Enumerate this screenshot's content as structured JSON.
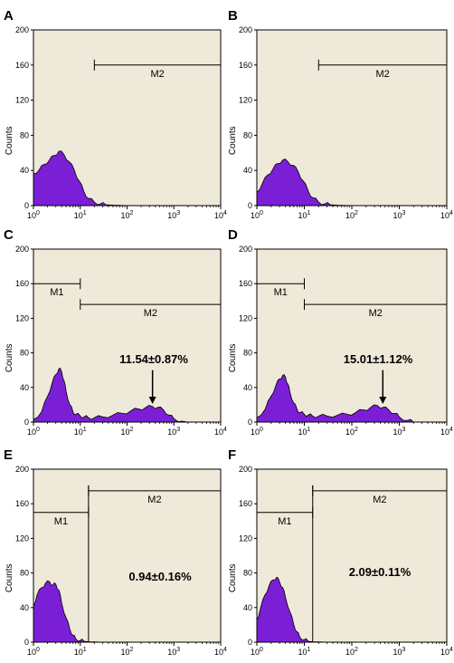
{
  "chart_data": [
    {
      "panel": "A",
      "type": "area",
      "ylabel": "Counts",
      "ylim": [
        0,
        200
      ],
      "xscale": "log",
      "xlim": [
        1,
        10000
      ],
      "yticks": [
        "0",
        "40",
        "80",
        "120",
        "160",
        "200"
      ],
      "xticks": [
        {
          "base": "10",
          "exp": "0"
        },
        {
          "base": "10",
          "exp": "1"
        },
        {
          "base": "10",
          "exp": "2"
        },
        {
          "base": "10",
          "exp": "3"
        },
        {
          "base": "10",
          "exp": "4"
        }
      ],
      "gates": [
        {
          "label": "M2",
          "start": 20,
          "end": 10000,
          "y": 160
        }
      ],
      "annotation": null,
      "histogram": {
        "x": [
          1,
          1.3,
          1.7,
          2.2,
          2.8,
          3.5,
          4.5,
          5.8,
          7.5,
          9.5,
          12,
          15,
          20,
          27,
          35,
          50,
          70,
          100,
          10000
        ],
        "y": [
          37,
          40,
          47,
          52,
          57,
          62,
          58,
          50,
          40,
          28,
          16,
          8,
          4,
          2,
          1,
          0.5,
          0.3,
          0,
          0
        ]
      }
    },
    {
      "panel": "B",
      "type": "area",
      "ylabel": "Counts",
      "ylim": [
        0,
        200
      ],
      "xscale": "log",
      "xlim": [
        1,
        10000
      ],
      "yticks": [
        "0",
        "40",
        "80",
        "120",
        "160",
        "200"
      ],
      "xticks": [
        {
          "base": "10",
          "exp": "0"
        },
        {
          "base": "10",
          "exp": "1"
        },
        {
          "base": "10",
          "exp": "2"
        },
        {
          "base": "10",
          "exp": "3"
        },
        {
          "base": "10",
          "exp": "4"
        }
      ],
      "gates": [
        {
          "label": "M2",
          "start": 20,
          "end": 10000,
          "y": 160
        }
      ],
      "annotation": null,
      "histogram": {
        "x": [
          1,
          1.3,
          1.7,
          2.2,
          2.8,
          3.5,
          4.5,
          5.8,
          7.5,
          9.5,
          12,
          15,
          20,
          27,
          35,
          50,
          70,
          100,
          10000
        ],
        "y": [
          15,
          25,
          35,
          42,
          48,
          52,
          50,
          46,
          38,
          28,
          17,
          9,
          4,
          2,
          1,
          0.5,
          0.2,
          0,
          0
        ]
      }
    },
    {
      "panel": "C",
      "type": "area",
      "ylabel": "Counts",
      "ylim": [
        0,
        200
      ],
      "xscale": "log",
      "xlim": [
        1,
        10000
      ],
      "yticks": [
        "0",
        "40",
        "80",
        "120",
        "160",
        "200"
      ],
      "xticks": [
        {
          "base": "10",
          "exp": "0"
        },
        {
          "base": "10",
          "exp": "1"
        },
        {
          "base": "10",
          "exp": "2"
        },
        {
          "base": "10",
          "exp": "3"
        },
        {
          "base": "10",
          "exp": "4"
        }
      ],
      "gates": [
        {
          "label": "M1",
          "start": 1,
          "end": 10,
          "y": 160
        },
        {
          "label": "M2",
          "start": 10,
          "end": 10000,
          "y": 136
        }
      ],
      "annotation": {
        "text": "11.54±0.87%",
        "x": 350,
        "y": 60,
        "arrow_to_y": 22
      },
      "histogram": {
        "x": [
          1,
          1.5,
          2,
          2.5,
          3,
          3.5,
          4,
          4.5,
          5,
          6,
          7,
          8,
          10,
          12,
          15,
          20,
          30,
          50,
          80,
          120,
          180,
          250,
          350,
          450,
          600,
          800,
          1000,
          1500,
          2000,
          10000
        ],
        "y": [
          3,
          12,
          30,
          45,
          55,
          62,
          58,
          48,
          35,
          20,
          12,
          9,
          7,
          6,
          5,
          5,
          6,
          8,
          10,
          13,
          15,
          17,
          18,
          17,
          14,
          8,
          4,
          1,
          0,
          0
        ]
      }
    },
    {
      "panel": "D",
      "type": "area",
      "ylabel": "Counts",
      "ylim": [
        0,
        200
      ],
      "xscale": "log",
      "xlim": [
        1,
        10000
      ],
      "yticks": [
        "0",
        "40",
        "80",
        "120",
        "160",
        "200"
      ],
      "xticks": [
        {
          "base": "10",
          "exp": "0"
        },
        {
          "base": "10",
          "exp": "1"
        },
        {
          "base": "10",
          "exp": "2"
        },
        {
          "base": "10",
          "exp": "3"
        },
        {
          "base": "10",
          "exp": "4"
        }
      ],
      "gates": [
        {
          "label": "M1",
          "start": 1,
          "end": 10,
          "y": 160
        },
        {
          "label": "M2",
          "start": 10,
          "end": 10000,
          "y": 136
        }
      ],
      "annotation": {
        "text": "15.01±1.12%",
        "x": 450,
        "y": 60,
        "arrow_to_y": 22
      },
      "histogram": {
        "x": [
          1,
          1.5,
          2,
          2.5,
          3,
          3.5,
          4,
          4.5,
          5,
          6,
          7,
          8,
          10,
          12,
          15,
          20,
          30,
          50,
          80,
          120,
          180,
          250,
          350,
          450,
          600,
          800,
          1000,
          1500,
          2000,
          10000
        ],
        "y": [
          5,
          15,
          30,
          42,
          50,
          54,
          52,
          44,
          34,
          22,
          15,
          11,
          9,
          8,
          7,
          7,
          7,
          8,
          9,
          11,
          14,
          17,
          19,
          17,
          14,
          10,
          6,
          2,
          0,
          0
        ]
      }
    },
    {
      "panel": "E",
      "type": "area",
      "ylabel": "Counts",
      "ylim": [
        0,
        200
      ],
      "xscale": "log",
      "xlim": [
        1,
        10000
      ],
      "yticks": [
        "0",
        "40",
        "80",
        "120",
        "160",
        "200"
      ],
      "xticks": [
        {
          "base": "10",
          "exp": "0"
        },
        {
          "base": "10",
          "exp": "1"
        },
        {
          "base": "10",
          "exp": "2"
        },
        {
          "base": "10",
          "exp": "3"
        },
        {
          "base": "10",
          "exp": "4"
        }
      ],
      "gates": [
        {
          "label": "M1",
          "start": 1,
          "end": 15,
          "y": 150
        },
        {
          "label": "M2",
          "start": 15,
          "end": 10000,
          "y": 175
        }
      ],
      "annotation": {
        "text": "0.94±0.16%",
        "x": null,
        "y": null,
        "arrow_to_y": null
      },
      "histogram": {
        "x": [
          1,
          1.2,
          1.5,
          1.8,
          2.2,
          2.6,
          3,
          3.5,
          4,
          5,
          6,
          7,
          8,
          10,
          12,
          15,
          20,
          30,
          50,
          10000
        ],
        "y": [
          42,
          55,
          63,
          68,
          70,
          66,
          67,
          60,
          45,
          28,
          15,
          8,
          4,
          2,
          1,
          0.5,
          0.3,
          0,
          0,
          0
        ]
      }
    },
    {
      "panel": "F",
      "type": "area",
      "ylabel": "Counts",
      "ylim": [
        0,
        200
      ],
      "xscale": "log",
      "xlim": [
        1,
        10000
      ],
      "yticks": [
        "0",
        "40",
        "80",
        "120",
        "160",
        "200"
      ],
      "xticks": [
        {
          "base": "10",
          "exp": "0"
        },
        {
          "base": "10",
          "exp": "1"
        },
        {
          "base": "10",
          "exp": "2"
        },
        {
          "base": "10",
          "exp": "3"
        },
        {
          "base": "10",
          "exp": "4"
        }
      ],
      "gates": [
        {
          "label": "M1",
          "start": 1,
          "end": 15,
          "y": 150
        },
        {
          "label": "M2",
          "start": 15,
          "end": 10000,
          "y": 175
        }
      ],
      "annotation": {
        "text": "2.09±0.11%",
        "x": null,
        "y": null,
        "arrow_to_y": null
      },
      "histogram": {
        "x": [
          1,
          1.2,
          1.5,
          1.8,
          2.2,
          2.6,
          3,
          3.5,
          4,
          5,
          6,
          7,
          8,
          10,
          12,
          15,
          20,
          30,
          50,
          10000
        ],
        "y": [
          25,
          40,
          55,
          65,
          72,
          75,
          70,
          63,
          52,
          35,
          20,
          12,
          6,
          3,
          1,
          0.5,
          0.3,
          0,
          0,
          0
        ]
      }
    }
  ],
  "colors": {
    "plot_bg": "#efe9d9",
    "fill": "#7a1fd6",
    "line": "#000000"
  }
}
